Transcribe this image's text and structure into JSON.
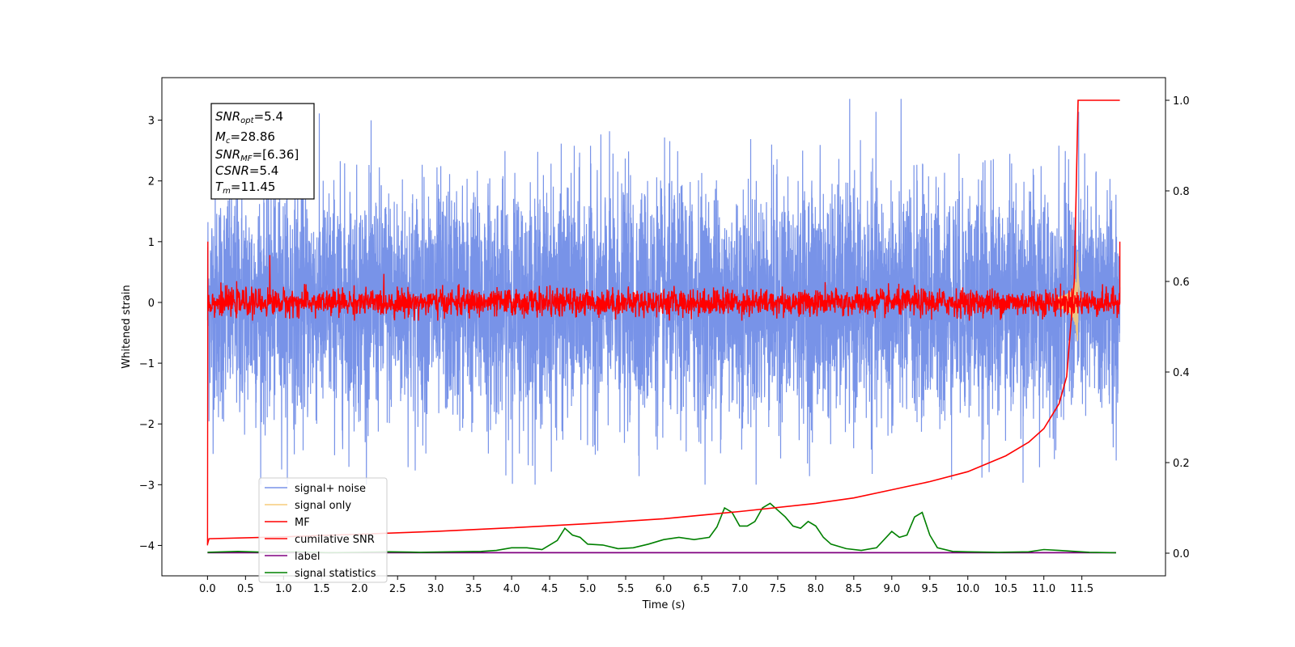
{
  "chart_data": {
    "type": "line",
    "xlabel": "Time (s)",
    "ylabel": "Whitened strain",
    "xlim": [
      -0.6,
      12.6
    ],
    "ylim_left": [
      -4.5,
      3.7
    ],
    "ylim_right": [
      -0.05,
      1.05
    ],
    "x_ticks": [
      "0.0",
      "0.5",
      "1.0",
      "1.5",
      "2.0",
      "2.5",
      "3.0",
      "3.5",
      "4.0",
      "4.5",
      "5.0",
      "5.5",
      "6.0",
      "6.5",
      "7.0",
      "7.5",
      "8.0",
      "8.5",
      "9.0",
      "9.5",
      "10.0",
      "10.5",
      "11.0",
      "11.5"
    ],
    "y_ticks_left": [
      "3",
      "2",
      "1",
      "0",
      "−1",
      "−2",
      "−3",
      "−4"
    ],
    "y_ticks_right": [
      "1.0",
      "0.8",
      "0.6",
      "0.4",
      "0.2",
      "0.0"
    ],
    "annotation": {
      "snr_opt": {
        "sym": "SNR",
        "sub": "opt",
        "val": "=5.4"
      },
      "mc": {
        "sym": "M",
        "sub": "c",
        "val": "=28.86"
      },
      "snr_mf": {
        "sym": "SNR",
        "sub": "MF",
        "val": "=[6.36]"
      },
      "csnr": {
        "sym": "CSNR",
        "sub": "",
        "val": "=5.4"
      },
      "tm": {
        "sym": "T",
        "sub": "m",
        "val": "=11.45"
      }
    },
    "legend": [
      {
        "label": "signal+ noise",
        "color": "#7893e8"
      },
      {
        "label": "signal only",
        "color": "#f7cc7a"
      },
      {
        "label": "MF",
        "color": "#ff0000"
      },
      {
        "label": "cumilative SNR",
        "color": "#ff0000"
      },
      {
        "label": "label",
        "color": "#800080"
      },
      {
        "label": "signal statistics",
        "color": "#008000"
      }
    ],
    "series": [
      {
        "name": "signal+ noise",
        "axis": "left",
        "noise_std": 0.95,
        "range": [
          -3.0,
          3.35
        ],
        "t": [
          0,
          12
        ]
      },
      {
        "name": "signal only",
        "axis": "left",
        "chirp_end": 11.45,
        "peak": 1.0
      },
      {
        "name": "MF",
        "axis": "left",
        "noise_std": 0.11,
        "range": [
          -0.3,
          0.8
        ],
        "t": [
          0,
          12
        ]
      },
      {
        "name": "cumilative SNR",
        "axis": "right",
        "x": [
          0.0,
          0.02,
          1.0,
          2.0,
          3.0,
          4.0,
          5.0,
          6.0,
          7.0,
          8.0,
          8.5,
          9.0,
          9.5,
          10.0,
          10.5,
          10.8,
          11.0,
          11.2,
          11.3,
          11.4,
          11.45,
          11.5,
          12.0
        ],
        "y": [
          0.02,
          0.032,
          0.036,
          0.042,
          0.048,
          0.056,
          0.065,
          0.076,
          0.092,
          0.11,
          0.122,
          0.14,
          0.158,
          0.18,
          0.215,
          0.245,
          0.275,
          0.33,
          0.39,
          0.6,
          1.0,
          1.0,
          1.0
        ]
      },
      {
        "name": "label",
        "axis": "right",
        "x": [
          0,
          11.95
        ],
        "y": [
          0.001,
          0.001
        ]
      },
      {
        "name": "signal statistics",
        "axis": "right",
        "x": [
          0.0,
          0.4,
          0.8,
          1.2,
          1.6,
          2.0,
          2.4,
          2.8,
          3.2,
          3.6,
          3.8,
          4.0,
          4.2,
          4.4,
          4.5,
          4.6,
          4.7,
          4.8,
          4.9,
          5.0,
          5.2,
          5.4,
          5.6,
          5.8,
          6.0,
          6.2,
          6.4,
          6.6,
          6.7,
          6.8,
          6.9,
          7.0,
          7.1,
          7.2,
          7.3,
          7.4,
          7.5,
          7.6,
          7.7,
          7.8,
          7.9,
          8.0,
          8.1,
          8.2,
          8.4,
          8.6,
          8.8,
          9.0,
          9.1,
          9.2,
          9.3,
          9.4,
          9.5,
          9.6,
          9.8,
          10.0,
          10.4,
          10.8,
          11.0,
          11.2,
          11.6,
          11.95
        ],
        "y": [
          0.002,
          0.004,
          0.002,
          0.003,
          0.001,
          0.002,
          0.003,
          0.002,
          0.003,
          0.004,
          0.006,
          0.012,
          0.012,
          0.008,
          0.018,
          0.028,
          0.055,
          0.04,
          0.035,
          0.02,
          0.018,
          0.01,
          0.012,
          0.02,
          0.03,
          0.035,
          0.03,
          0.035,
          0.058,
          0.1,
          0.09,
          0.06,
          0.06,
          0.07,
          0.1,
          0.11,
          0.095,
          0.08,
          0.06,
          0.055,
          0.07,
          0.06,
          0.035,
          0.02,
          0.01,
          0.006,
          0.012,
          0.048,
          0.035,
          0.04,
          0.08,
          0.09,
          0.04,
          0.012,
          0.004,
          0.003,
          0.002,
          0.003,
          0.008,
          0.006,
          0.002,
          0.001
        ]
      }
    ]
  }
}
